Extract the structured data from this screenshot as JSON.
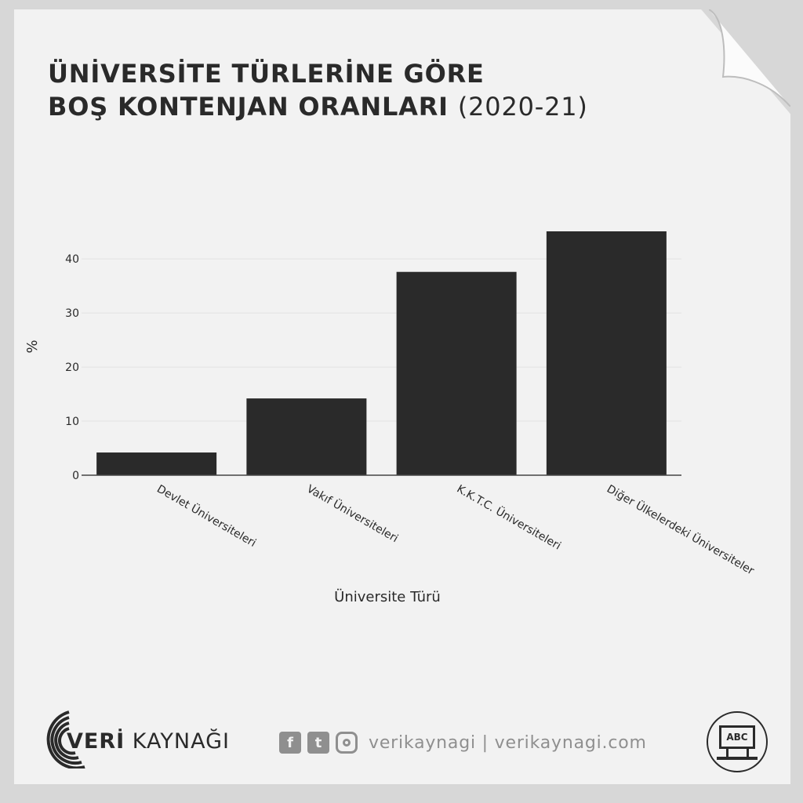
{
  "header": {
    "title_line1": "ÜNİVERSİTE TÜRLERİNE GÖRE",
    "title_line2": "BOŞ KONTENJAN ORANLARI",
    "title_year": "(2020-21)"
  },
  "chart_data": {
    "type": "bar",
    "categories": [
      "Devlet Üniversiteleri",
      "Vakıf Üniversiteleri",
      "K.K.T.C. Üniversiteleri",
      "Diğer Ülkelerdeki Üniversiteler"
    ],
    "values": [
      4.2,
      14.2,
      37.6,
      45.1
    ],
    "xlabel": "Üniversite Türü",
    "ylabel": "%",
    "ylim": [
      0,
      45.1
    ],
    "yticks": [
      0,
      10,
      20,
      30,
      40
    ],
    "grid": true,
    "bar_color": "#2a2a2a",
    "grid_color": "#e3e3e3",
    "axis_color": "#444444"
  },
  "footer": {
    "brand_prefix": "VERİ",
    "brand_suffix": "KAYNAĞI",
    "social_handle": "verikaynagi | verikaynagi.com",
    "facebook_glyph": "f",
    "twitter_glyph": "t",
    "badge_text": "ABC"
  },
  "colors": {
    "paper": "#f2f2f2",
    "ink": "#2a2a2a",
    "muted": "#8f8f8f"
  }
}
